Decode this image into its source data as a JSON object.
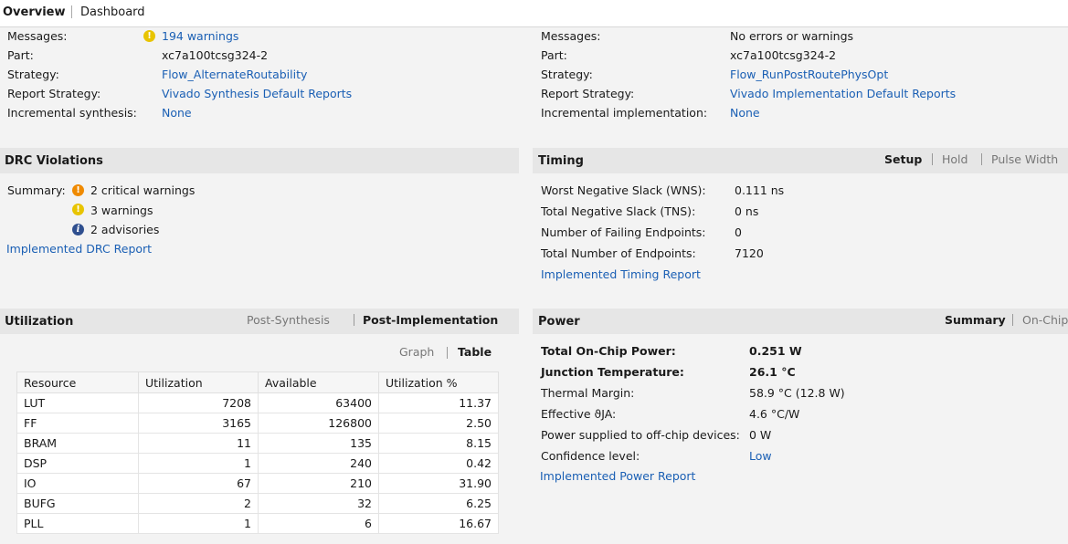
{
  "tabs": {
    "overview": "Overview",
    "dashboard": "Dashboard"
  },
  "synth": {
    "labels": [
      "Messages:",
      "Part:",
      "Strategy:",
      "Report Strategy:",
      "Incremental synthesis:"
    ],
    "messages": "194 warnings",
    "part": "xc7a100tcsg324-2",
    "strategy": "Flow_AlternateRoutability",
    "report_strategy": "Vivado Synthesis Default Reports",
    "incremental": "None"
  },
  "impl": {
    "labels": [
      "Messages:",
      "Part:",
      "Strategy:",
      "Report Strategy:",
      "Incremental implementation:"
    ],
    "messages": "No errors or warnings",
    "part": "xc7a100tcsg324-2",
    "strategy": "Flow_RunPostRoutePhysOpt",
    "report_strategy": "Vivado Implementation Default Reports",
    "incremental": "None"
  },
  "drc": {
    "title": "DRC Violations",
    "summary_label": "Summary:",
    "critical": "2 critical warnings",
    "warnings": "3 warnings",
    "advisories": "2 advisories",
    "report_link": "Implemented DRC Report"
  },
  "timing": {
    "title": "Timing",
    "tabs": [
      "Setup",
      "Hold",
      "Pulse Width"
    ],
    "rows": [
      {
        "label": "Worst Negative Slack (WNS):",
        "value": "0.111 ns"
      },
      {
        "label": "Total Negative Slack (TNS):",
        "value": "0 ns"
      },
      {
        "label": "Number of Failing Endpoints:",
        "value": "0"
      },
      {
        "label": "Total Number of Endpoints:",
        "value": "7120"
      }
    ],
    "report_link": "Implemented Timing Report"
  },
  "utilization": {
    "title": "Utilization",
    "tabs": [
      "Post-Synthesis",
      "Post-Implementation"
    ],
    "view_tabs": [
      "Graph",
      "Table"
    ],
    "columns": [
      "Resource",
      "Utilization",
      "Available",
      "Utilization %"
    ],
    "rows": [
      [
        "LUT",
        "7208",
        "63400",
        "11.37"
      ],
      [
        "FF",
        "3165",
        "126800",
        "2.50"
      ],
      [
        "BRAM",
        "11",
        "135",
        "8.15"
      ],
      [
        "DSP",
        "1",
        "240",
        "0.42"
      ],
      [
        "IO",
        "67",
        "210",
        "31.90"
      ],
      [
        "BUFG",
        "2",
        "32",
        "6.25"
      ],
      [
        "PLL",
        "1",
        "6",
        "16.67"
      ]
    ]
  },
  "power": {
    "title": "Power",
    "tabs": [
      "Summary",
      "On-Chip"
    ],
    "rows": [
      {
        "label": "Total On-Chip Power:",
        "value": "0.251 W"
      },
      {
        "label": "Junction Temperature:",
        "value": "26.1 °C"
      },
      {
        "label": "Thermal Margin:",
        "value": "58.9 °C (12.8 W)"
      },
      {
        "label": "Effective ϑJA:",
        "value": "4.6 °C/W"
      },
      {
        "label": "Power supplied to off-chip devices:",
        "value": "0 W"
      },
      {
        "label": "Confidence level:",
        "value": "Low"
      }
    ],
    "report_link": "Implemented Power Report"
  },
  "colors": {
    "link": "#1a5fb4",
    "warning": "#e8c400",
    "critical": "#ef8a00",
    "info": "#2f4f8f"
  }
}
